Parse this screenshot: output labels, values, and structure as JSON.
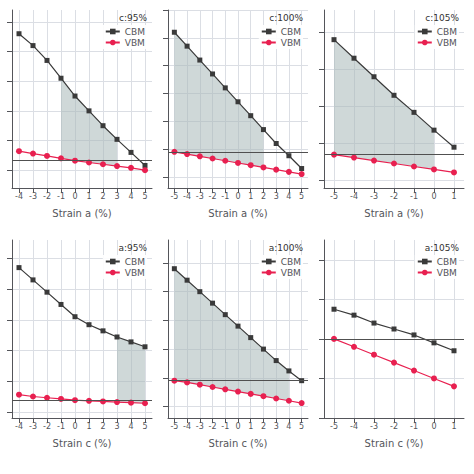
{
  "chart_data": [
    {
      "type": "line",
      "title": "c:95%",
      "xlabel": "Strain a (%)",
      "x": [
        -4,
        -3,
        -2,
        -1,
        0,
        1,
        2,
        3,
        4,
        5
      ],
      "series": [
        {
          "name": "CBM",
          "color": "#3a3a3a",
          "marker": "square",
          "values": [
            1.8,
            1.6,
            1.35,
            1.05,
            0.75,
            0.5,
            0.25,
            0.02,
            -0.2,
            -0.42
          ]
        },
        {
          "name": "VBM",
          "color": "#e82050",
          "marker": "circle",
          "values": [
            -0.18,
            -0.22,
            -0.26,
            -0.3,
            -0.34,
            -0.37,
            -0.4,
            -0.43,
            -0.46,
            -0.5
          ]
        }
      ],
      "shade": {
        "x": [
          -1,
          0,
          1,
          2,
          3
        ],
        "upper": [
          1.05,
          0.75,
          0.5,
          0.25,
          0.02
        ],
        "lower": [
          -0.3,
          -0.34,
          -0.37,
          -0.4,
          -0.43
        ],
        "color": "#a8b8b8"
      },
      "hline": {
        "value": -0.34,
        "color": "#505050"
      },
      "xlim": [
        -4.5,
        5.5
      ],
      "xticks": [
        -4,
        -3,
        -2,
        -1,
        0,
        1,
        2,
        3,
        4,
        5
      ],
      "ylim": [
        -0.8,
        2.2
      ],
      "yticks": [
        -0.5,
        0,
        0.5,
        1,
        1.5,
        2
      ],
      "grid": true,
      "legend": "upper right",
      "tick_labels": "x"
    },
    {
      "type": "line",
      "title": "c:100%",
      "xlabel": "Strain a (%)",
      "x": [
        -5,
        -4,
        -3,
        -2,
        -1,
        0,
        1,
        2,
        3,
        4,
        5
      ],
      "series": [
        {
          "name": "CBM",
          "color": "#3a3a3a",
          "marker": "square",
          "values": [
            2.1,
            1.85,
            1.6,
            1.35,
            1.1,
            0.85,
            0.6,
            0.35,
            0.1,
            -0.12,
            -0.35
          ]
        },
        {
          "name": "VBM",
          "color": "#e82050",
          "marker": "circle",
          "values": [
            -0.05,
            -0.09,
            -0.13,
            -0.17,
            -0.21,
            -0.25,
            -0.29,
            -0.33,
            -0.37,
            -0.41,
            -0.45
          ]
        }
      ],
      "shade": {
        "x": [
          -5,
          -4,
          -3,
          -2,
          -1,
          0,
          1,
          2
        ],
        "upper": [
          2.1,
          1.85,
          1.6,
          1.35,
          1.1,
          0.85,
          0.6,
          0.35
        ],
        "lower": [
          -0.05,
          -0.09,
          -0.13,
          -0.17,
          -0.21,
          -0.25,
          -0.29,
          -0.33
        ],
        "color": "#a8b8b8"
      },
      "hline": {
        "value": -0.05,
        "color": "#505050"
      },
      "xlim": [
        -5.5,
        5.5
      ],
      "xticks": [
        -5,
        -4,
        -3,
        -2,
        -1,
        0,
        1,
        2,
        3,
        4,
        5
      ],
      "ylim": [
        -0.7,
        2.5
      ],
      "yticks": [
        -0.5,
        0,
        0.5,
        1,
        1.5,
        2,
        2.5
      ],
      "grid": true,
      "legend": "upper right",
      "tick_labels": "x"
    },
    {
      "type": "line",
      "title": "c:105%",
      "xlabel": "Strain a (%)",
      "x": [
        -5,
        -4,
        -3,
        -2,
        -1,
        0,
        1
      ],
      "series": [
        {
          "name": "CBM",
          "color": "#3a3a3a",
          "marker": "square",
          "values": [
            1.4,
            1.15,
            0.9,
            0.65,
            0.42,
            0.18,
            -0.05
          ]
        },
        {
          "name": "VBM",
          "color": "#e82050",
          "marker": "circle",
          "values": [
            -0.15,
            -0.19,
            -0.23,
            -0.27,
            -0.31,
            -0.35,
            -0.39
          ]
        }
      ],
      "shade": {
        "x": [
          -5,
          -4,
          -3,
          -2,
          -1,
          0
        ],
        "upper": [
          1.4,
          1.15,
          0.9,
          0.65,
          0.42,
          0.18
        ],
        "lower": [
          -0.15,
          -0.19,
          -0.23,
          -0.27,
          -0.31,
          -0.35
        ],
        "color": "#a8b8b8"
      },
      "hline": {
        "value": -0.15,
        "color": "#505050"
      },
      "xlim": [
        -5.5,
        1.5
      ],
      "xticks": [
        -5,
        -4,
        -3,
        -2,
        -1,
        0,
        1
      ],
      "ylim": [
        -0.6,
        1.8
      ],
      "yticks": [
        -0.5,
        0,
        0.5,
        1,
        1.5
      ],
      "grid": true,
      "legend": "upper right",
      "tick_labels": "x"
    },
    {
      "type": "line",
      "title": "a:95%",
      "xlabel": "Strain c (%)",
      "x": [
        -4,
        -3,
        -2,
        -1,
        0,
        1,
        2,
        3,
        4,
        5
      ],
      "series": [
        {
          "name": "CBM",
          "color": "#3a3a3a",
          "marker": "square",
          "values": [
            1.85,
            1.65,
            1.45,
            1.25,
            1.05,
            0.92,
            0.82,
            0.72,
            0.64,
            0.56
          ]
        },
        {
          "name": "VBM",
          "color": "#e82050",
          "marker": "circle",
          "values": [
            -0.22,
            -0.25,
            -0.27,
            -0.29,
            -0.31,
            -0.32,
            -0.33,
            -0.34,
            -0.35,
            -0.36
          ]
        }
      ],
      "shade": {
        "x": [
          3,
          4,
          5
        ],
        "upper": [
          0.72,
          0.64,
          0.56
        ],
        "lower": [
          -0.34,
          -0.35,
          -0.36
        ],
        "color": "#a8b8b8"
      },
      "hline": {
        "value": -0.31,
        "color": "#505050"
      },
      "xlim": [
        -4.5,
        5.5
      ],
      "xticks": [
        -4,
        -3,
        -2,
        -1,
        0,
        1,
        2,
        3,
        4,
        5
      ],
      "ylim": [
        -0.6,
        2.3
      ],
      "yticks": [
        -0.5,
        0,
        0.5,
        1,
        1.5,
        2
      ],
      "grid": true,
      "legend": "upper right",
      "tick_labels": "x"
    },
    {
      "type": "line",
      "title": "a:100%",
      "xlabel": "Strain c (%)",
      "x": [
        -5,
        -4,
        -3,
        -2,
        -1,
        0,
        1,
        2,
        3,
        4,
        5
      ],
      "series": [
        {
          "name": "CBM",
          "color": "#3a3a3a",
          "marker": "square",
          "values": [
            1.9,
            1.7,
            1.5,
            1.3,
            1.1,
            0.9,
            0.7,
            0.5,
            0.3,
            0.12,
            -0.05
          ]
        },
        {
          "name": "VBM",
          "color": "#e82050",
          "marker": "circle",
          "values": [
            -0.05,
            -0.08,
            -0.12,
            -0.16,
            -0.2,
            -0.24,
            -0.28,
            -0.32,
            -0.36,
            -0.4,
            -0.44
          ]
        }
      ],
      "shade": {
        "x": [
          -5,
          -4,
          -3,
          -2,
          -1,
          0,
          1,
          2,
          3,
          4
        ],
        "upper": [
          1.9,
          1.7,
          1.5,
          1.3,
          1.1,
          0.9,
          0.7,
          0.5,
          0.3,
          0.12
        ],
        "lower": [
          -0.05,
          -0.08,
          -0.12,
          -0.16,
          -0.2,
          -0.24,
          -0.28,
          -0.32,
          -0.36,
          -0.4
        ],
        "color": "#a8b8b8"
      },
      "hline": {
        "value": -0.05,
        "color": "#505050"
      },
      "xlim": [
        -5.5,
        5.5
      ],
      "xticks": [
        -5,
        -4,
        -3,
        -2,
        -1,
        0,
        1,
        2,
        3,
        4,
        5
      ],
      "ylim": [
        -0.7,
        2.4
      ],
      "yticks": [
        -0.5,
        0,
        0.5,
        1,
        1.5,
        2
      ],
      "grid": true,
      "legend": "upper right",
      "tick_labels": "x"
    },
    {
      "type": "line",
      "title": "a:105%",
      "xlabel": "Strain c (%)",
      "x": [
        -5,
        -4,
        -3,
        -2,
        -1,
        0,
        1
      ],
      "series": [
        {
          "name": "CBM",
          "color": "#3a3a3a",
          "marker": "square",
          "values": [
            -0.05,
            -0.08,
            -0.12,
            -0.15,
            -0.18,
            -0.22,
            -0.26
          ]
        },
        {
          "name": "VBM",
          "color": "#e82050",
          "marker": "circle",
          "values": [
            -0.2,
            -0.24,
            -0.28,
            -0.32,
            -0.36,
            -0.4,
            -0.44
          ]
        }
      ],
      "hline": {
        "value": -0.2,
        "color": "#505050"
      },
      "xlim": [
        -5.5,
        1.5
      ],
      "xticks": [
        -5,
        -4,
        -3,
        -2,
        -1,
        0,
        1
      ],
      "ylim": [
        -0.6,
        0.3
      ],
      "yticks": [
        -0.6,
        -0.4,
        -0.2,
        0,
        0.2
      ],
      "grid": true,
      "legend": "upper right",
      "tick_labels": "x"
    }
  ]
}
